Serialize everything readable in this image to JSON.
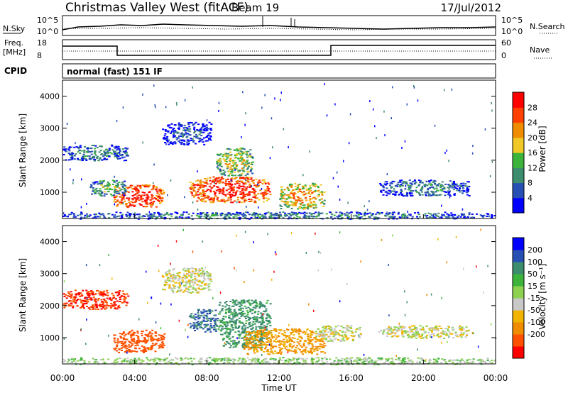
{
  "header": {
    "station": "Christmas Valley West (fitACF)",
    "beam": "Beam 19",
    "date": "17/Jul/2012"
  },
  "strips": {
    "nsky_label": "N.Sky",
    "nsky_ticks": [
      "10^5",
      "10^0"
    ],
    "nsearch_label": "N.Search",
    "nsearch_ticks": [
      "10^5",
      "10^0"
    ],
    "freq_label": "Freq.",
    "freq_unit": "[MHz]",
    "freq_ticks": [
      "18",
      "8"
    ],
    "nave_label": "Nave",
    "nave_ticks": [
      "60",
      "0"
    ],
    "cpid_label": "CPID",
    "cpid_text": "normal (fast) 151 IF"
  },
  "chart_data": [
    {
      "type": "heatmap",
      "name": "power",
      "ylabel": "Slant Range [km]",
      "yticks": [
        "4000",
        "3000",
        "2000",
        "1000"
      ],
      "ylim": [
        180,
        4500
      ],
      "xlim": [
        0,
        24
      ],
      "colorbar_label": "Power [dB]",
      "colorbar_ticks": [
        "28",
        "24",
        "20",
        "16",
        "12",
        "8",
        "4"
      ],
      "colorbar_colors": [
        "#0000ff",
        "#2850b4",
        "#3c8c6e",
        "#3cb43c",
        "#f0c828",
        "#f08c00",
        "#ff4000",
        "#ff0000"
      ],
      "echo_regions": [
        {
          "t": [
            0.0,
            3.6
          ],
          "r": [
            2000,
            2500
          ],
          "level": 2
        },
        {
          "t": [
            2.8,
            5.6
          ],
          "r": [
            550,
            1250
          ],
          "level": 7
        },
        {
          "t": [
            1.5,
            3.5
          ],
          "r": [
            900,
            1400
          ],
          "level": 3
        },
        {
          "t": [
            5.5,
            8.2
          ],
          "r": [
            2500,
            3200
          ],
          "level": 1
        },
        {
          "t": [
            7.0,
            11.5
          ],
          "r": [
            700,
            1500
          ],
          "level": 7
        },
        {
          "t": [
            8.5,
            10.5
          ],
          "r": [
            1500,
            2400
          ],
          "level": 4
        },
        {
          "t": [
            12.0,
            14.5
          ],
          "r": [
            500,
            1300
          ],
          "level": 5
        },
        {
          "t": [
            17.5,
            22.5
          ],
          "r": [
            900,
            1400
          ],
          "level": 2
        },
        {
          "t": [
            0.0,
            24.0
          ],
          "r": [
            180,
            400
          ],
          "level": 2
        }
      ]
    },
    {
      "type": "heatmap",
      "name": "velocity",
      "ylabel": "Slant Range [km]",
      "yticks": [
        "4000",
        "3000",
        "2000",
        "1000"
      ],
      "ylim": [
        180,
        4500
      ],
      "xlim": [
        0,
        24
      ],
      "xlabel": "Time UT",
      "xticks": [
        "00:00",
        "04:00",
        "08:00",
        "12:00",
        "16:00",
        "20:00",
        "00:00"
      ],
      "colorbar_label": "Velocity [m s⁻¹]",
      "colorbar_ticks": [
        "200",
        "100",
        "50",
        "15",
        "-15",
        "-50",
        "-100",
        "-200"
      ],
      "colorbar_colors": [
        "#ff0000",
        "#ff5000",
        "#f08c00",
        "#f0b400",
        "#c8c8c8",
        "#8cd250",
        "#3cb43c",
        "#3c8c6e",
        "#2850b4",
        "#0000ff"
      ],
      "echo_regions": [
        {
          "t": [
            0.0,
            3.6
          ],
          "r": [
            1900,
            2500
          ],
          "v": -200
        },
        {
          "t": [
            2.8,
            5.6
          ],
          "r": [
            550,
            1250
          ],
          "v": -150
        },
        {
          "t": [
            5.5,
            8.2
          ],
          "r": [
            2400,
            3200
          ],
          "v": 0
        },
        {
          "t": [
            7.0,
            8.6
          ],
          "r": [
            1200,
            1900
          ],
          "v": 200
        },
        {
          "t": [
            8.6,
            11.5
          ],
          "r": [
            700,
            2200
          ],
          "v": 120
        },
        {
          "t": [
            10.0,
            14.5
          ],
          "r": [
            500,
            1300
          ],
          "v": -60
        },
        {
          "t": [
            14.0,
            16.5
          ],
          "r": [
            900,
            1400
          ],
          "v": 0
        },
        {
          "t": [
            17.5,
            22.5
          ],
          "r": [
            1000,
            1400
          ],
          "v": 0
        },
        {
          "t": [
            0.0,
            24.0
          ],
          "r": [
            180,
            400
          ],
          "v": 30
        }
      ]
    }
  ]
}
